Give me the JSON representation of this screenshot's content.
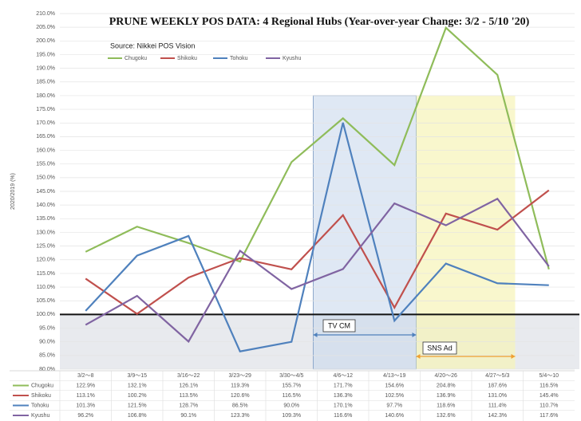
{
  "chart_data": {
    "type": "line",
    "title": "PRUNE WEEKLY POS DATA: 4 Regional Hubs (Year-over-year Change: 3/2 - 5/10 '20)",
    "subtitle": "Source: Nikkei POS Vision",
    "y_label": "2020/2019 (%)",
    "annotations": [
      "TV CM",
      "SNS Ad"
    ],
    "categories": [
      "3/2〜8",
      "3/9〜15",
      "3/16〜22",
      "3/23〜29",
      "3/30〜4/5",
      "4/6〜12",
      "4/13〜19",
      "4/20〜26",
      "4/27〜5/3",
      "5/4〜10"
    ],
    "series": [
      {
        "name": "Chugoku",
        "color": "#8fbc5a",
        "values": [
          122.9,
          132.1,
          126.1,
          119.3,
          155.7,
          171.7,
          154.6,
          204.8,
          187.6,
          116.5
        ],
        "value_labels": [
          "122.9%",
          "132.1%",
          "126.1%",
          "119.3%",
          "155.7%",
          "171.7%",
          "154.6%",
          "204.8%",
          "187.6%",
          "116.5%"
        ]
      },
      {
        "name": "Shikoku",
        "color": "#c0504d",
        "values": [
          113.1,
          100.2,
          113.5,
          120.6,
          116.5,
          136.3,
          102.5,
          136.9,
          131.0,
          145.4
        ],
        "value_labels": [
          "113.1%",
          "100.2%",
          "113.5%",
          "120.6%",
          "116.5%",
          "136.3%",
          "102.5%",
          "136.9%",
          "131.0%",
          "145.4%"
        ]
      },
      {
        "name": "Tohoku",
        "color": "#4f81bd",
        "values": [
          101.3,
          121.5,
          128.7,
          86.5,
          90.0,
          170.1,
          97.7,
          118.6,
          111.4,
          110.7
        ],
        "value_labels": [
          "101.3%",
          "121.5%",
          "128.7%",
          "86.5%",
          "90.0%",
          "170.1%",
          "97.7%",
          "118.6%",
          "111.4%",
          "110.7%"
        ]
      },
      {
        "name": "Kyushu",
        "color": "#8064a2",
        "values": [
          96.2,
          106.8,
          90.1,
          123.3,
          109.3,
          116.6,
          140.6,
          132.6,
          142.3,
          117.6
        ],
        "value_labels": [
          "96.2%",
          "106.8%",
          "90.1%",
          "123.3%",
          "109.3%",
          "116.6%",
          "140.6%",
          "132.6%",
          "142.3%",
          "117.6%"
        ]
      }
    ],
    "ylim": [
      80,
      210
    ],
    "yticks": [
      {
        "value": 80,
        "label": "80.0%"
      },
      {
        "value": 85,
        "label": "85.0%"
      },
      {
        "value": 90,
        "label": "90.0%"
      },
      {
        "value": 95,
        "label": "95.0%"
      },
      {
        "value": 100,
        "label": "100.0%"
      },
      {
        "value": 105,
        "label": "105.0%"
      },
      {
        "value": 110,
        "label": "110.0%"
      },
      {
        "value": 115,
        "label": "115.0%"
      },
      {
        "value": 120,
        "label": "120.0%"
      },
      {
        "value": 125,
        "label": "125.0%"
      },
      {
        "value": 130,
        "label": "130.0%"
      },
      {
        "value": 135,
        "label": "135.0%"
      },
      {
        "value": 140,
        "label": "140.0%"
      },
      {
        "value": 145,
        "label": "145.0%"
      },
      {
        "value": 150,
        "label": "150.0%"
      },
      {
        "value": 155,
        "label": "155.0%"
      },
      {
        "value": 160,
        "label": "160.0%"
      },
      {
        "value": 165,
        "label": "165.0%"
      },
      {
        "value": 170,
        "label": "170.0%"
      },
      {
        "value": 175,
        "label": "175.0%"
      },
      {
        "value": 180,
        "label": "180.0%"
      },
      {
        "value": 185,
        "label": "185.0%"
      },
      {
        "value": 190,
        "label": "190.0%"
      },
      {
        "value": 195,
        "label": "195.0%"
      },
      {
        "value": 200,
        "label": "200.0%"
      },
      {
        "value": 205,
        "label": "205.0%"
      },
      {
        "value": 210,
        "label": "210.0%"
      }
    ],
    "grid": true
  }
}
